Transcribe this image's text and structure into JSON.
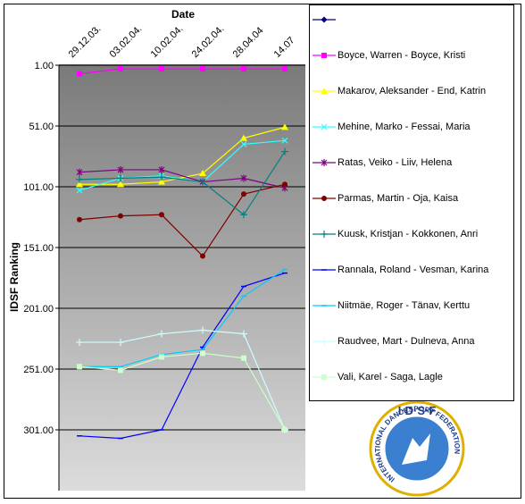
{
  "chart_data": {
    "type": "line",
    "xlabel": "Date",
    "ylabel": "IDSF Ranking",
    "categories": [
      "29.12.03.",
      "03.02.04.",
      "10.02.04.",
      "24.02.04.",
      "28.04.04",
      "14.07"
    ],
    "ylim": [
      1,
      351
    ],
    "y_reversed": true,
    "yticks": [
      {
        "value": 1,
        "label": "1.00"
      },
      {
        "value": 51,
        "label": "51.00"
      },
      {
        "value": 101,
        "label": "101.00"
      },
      {
        "value": 151,
        "label": "151.00"
      },
      {
        "value": 201,
        "label": "201.00"
      },
      {
        "value": 251,
        "label": "251.00"
      },
      {
        "value": 301,
        "label": "301.00"
      }
    ],
    "grid": true,
    "legend": "right",
    "series": [
      {
        "name": null,
        "color": "#000080",
        "marker": "diamond",
        "values": [
          null,
          null,
          null,
          null,
          null,
          null
        ]
      },
      {
        "name": "Boyce, Warren - Boyce, Kristi",
        "color": "#ff00ff",
        "marker": "square",
        "values": [
          8,
          4,
          4,
          4,
          4,
          4
        ]
      },
      {
        "name": "Makarov, Aleksander - End, Katrin",
        "color": "#ffff00",
        "marker": "triangle",
        "values": [
          99,
          99,
          97,
          90,
          61,
          52
        ]
      },
      {
        "name": "Mehine, Marko - Fessai, Maria",
        "color": "#33ffff",
        "marker": "x",
        "values": [
          104,
          94,
          92,
          97,
          66,
          63
        ]
      },
      {
        "name": "Ratas, Veiko - Liiv, Helena",
        "color": "#800080",
        "marker": "star",
        "values": [
          89,
          87,
          87,
          97,
          94,
          102
        ]
      },
      {
        "name": "Parmas, Martin - Oja, Kaisa",
        "color": "#800000",
        "marker": "circle",
        "values": [
          128,
          125,
          124,
          158,
          107,
          99
        ]
      },
      {
        "name": "Kuusk, Kristjan - Kokkonen, Anri",
        "color": "#008080",
        "marker": "plus",
        "values": [
          95,
          94,
          93,
          97,
          124,
          72
        ]
      },
      {
        "name": "Rannala, Roland - Vesman, Karina",
        "color": "#0000ff",
        "marker": "dash",
        "values": [
          306,
          308,
          301,
          233,
          183,
          172
        ]
      },
      {
        "name": "Niitmäe, Roger - Tänav, Kerttu",
        "color": "#00ccff",
        "marker": "dash",
        "values": [
          249,
          249,
          239,
          235,
          191,
          169
        ]
      },
      {
        "name": "Raudvee, Mart - Dulneva, Anna",
        "color": "#ccffff",
        "marker": "plus",
        "values": [
          229,
          229,
          222,
          219,
          222,
          301
        ]
      },
      {
        "name": "Vali, Karel - Saga, Lagle",
        "color": "#ccffcc",
        "marker": "square",
        "values": [
          249,
          252,
          241,
          238,
          242,
          301
        ]
      }
    ]
  },
  "logo": {
    "top": "I·D·S·F",
    "ring": "INTERNATIONAL DANCESPORT FEDERATION"
  }
}
